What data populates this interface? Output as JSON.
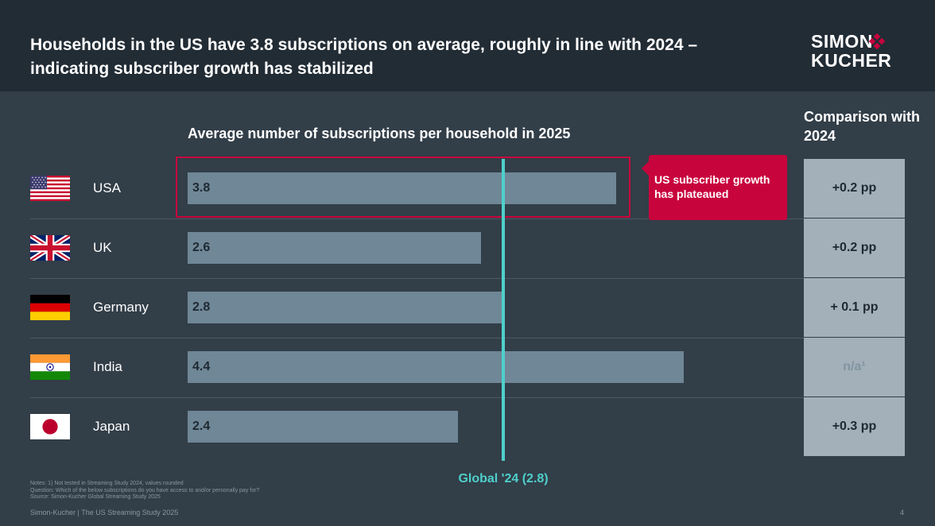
{
  "header": {
    "title": "Households in the US have 3.8 subscriptions on average, roughly in line with 2024 – indicating subscriber growth has stabilized",
    "logo_line1": "SIMON",
    "logo_line2": "KUCHER"
  },
  "chart_data": {
    "type": "bar",
    "orientation": "horizontal",
    "title": "Average number of subscriptions per household in 2025",
    "categories": [
      "USA",
      "UK",
      "Germany",
      "India",
      "Japan"
    ],
    "values": [
      3.8,
      2.6,
      2.8,
      4.4,
      2.4
    ],
    "value_labels": [
      "3.8",
      "2.6",
      "2.8",
      "4.4",
      "2.4"
    ],
    "xlim": [
      0,
      5
    ],
    "reference_line": {
      "value": 2.8,
      "label": "Global '24 (2.8)"
    },
    "comparison_title": "Comparison with 2024",
    "comparison": [
      "+0.2 pp",
      "+0.2 pp",
      "+ 0.1 pp",
      "n/a¹",
      "+0.3 pp"
    ],
    "highlight_category": "USA",
    "annotation": "US subscriber growth has plateaued"
  },
  "notes": [
    "Notes: 1) Not tested in Streaming Study 2024, values rounded",
    "Question: Which of the below subscriptions do you have access to and/or personally pay for?",
    "Source: Simon-Kucher Global Streaming Study 2025"
  ],
  "footer": "Simon-Kucher | The US Streaming Study 2025",
  "page_number": "4",
  "colors": {
    "background": "#323e48",
    "header": "#222c35",
    "bar": "#6f8797",
    "accent_red": "#c8043d",
    "reference_line": "#4fcfcb",
    "comparison_box": "#a3b0b9"
  }
}
